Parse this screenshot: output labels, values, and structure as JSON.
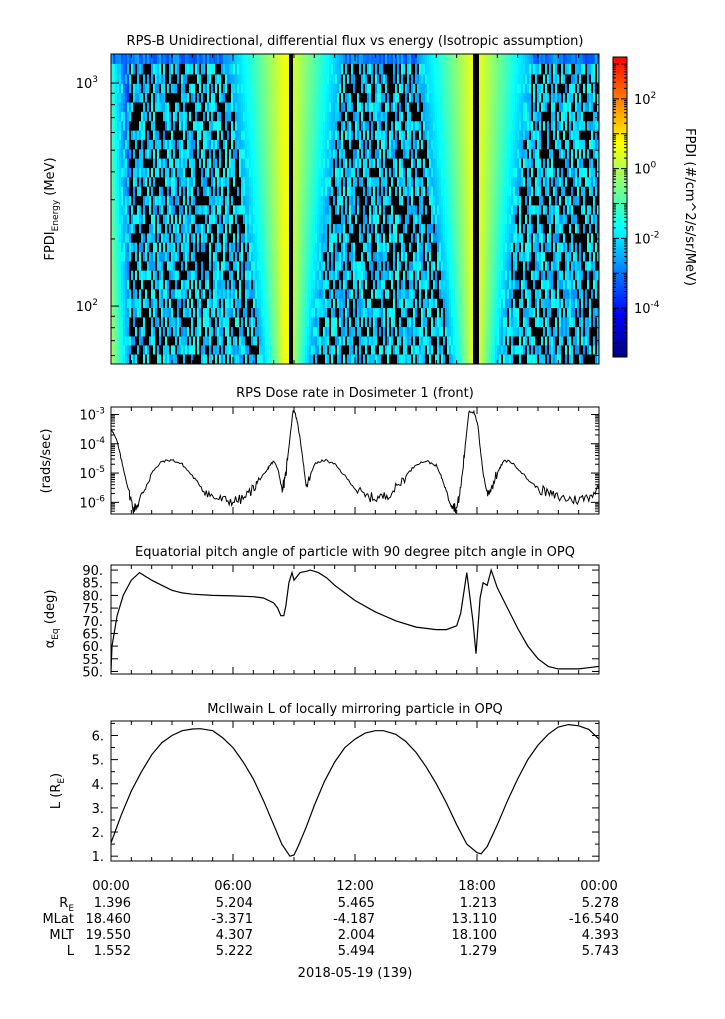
{
  "chart_data": [
    {
      "type": "heatmap",
      "title": "RPS-B  Unidirectional, differential flux vs energy (Isotropic assumption)",
      "ylabel": "FPDI",
      "ylabel_sub": "Energy",
      "ylabel_unit": " (MeV)",
      "yscale": "log",
      "ylim": [
        55,
        1350
      ],
      "yticks": [
        {
          "value": 100,
          "base": "10",
          "exp": "2"
        },
        {
          "value": 1000,
          "base": "10",
          "exp": "3"
        }
      ],
      "energy_channels_mev": [
        58,
        64,
        70,
        77,
        85,
        94,
        103,
        114,
        125,
        138,
        152,
        167,
        184,
        203,
        223,
        246,
        271,
        298,
        328,
        362,
        398,
        439,
        483,
        532,
        586,
        645,
        711,
        783,
        862,
        950,
        1046,
        1152,
        1300
      ],
      "xlim_hours": [
        0,
        24
      ],
      "bright_bands_hours": [
        8.6,
        17.9
      ],
      "data_gaps_hours": [
        8.85,
        17.95
      ],
      "colorbar": {
        "label": "FPDI (#/cm^2/s/sr/MeV)",
        "scale": "log",
        "ticks": [
          {
            "base": "10",
            "exp": "2",
            "value": 100
          },
          {
            "base": "10",
            "exp": "0",
            "value": 1
          },
          {
            "base": "10",
            "exp": "-2",
            "value": 0.01
          },
          {
            "base": "10",
            "exp": "-4",
            "value": 0.0001
          }
        ],
        "colors": [
          "#00007f",
          "#0000ff",
          "#007fff",
          "#00ffff",
          "#7fff7f",
          "#ffff00",
          "#ff7f00",
          "#ff0000"
        ]
      }
    },
    {
      "type": "line",
      "title": "RPS  Dose rate in Dosimeter 1 (front)",
      "ylabel": "(rads/sec)",
      "yscale": "log",
      "ylim": [
        4e-07,
        0.0018
      ],
      "yticks": [
        {
          "value": 1e-06,
          "base": "10",
          "exp": "-6"
        },
        {
          "value": 1e-05,
          "base": "10",
          "exp": "-5"
        },
        {
          "value": 0.0001,
          "base": "10",
          "exp": "-4"
        },
        {
          "value": 0.001,
          "base": "10",
          "exp": "-3"
        }
      ],
      "x_hours": [
        0,
        0.3,
        0.6,
        0.9,
        1.1,
        1.3,
        1.6,
        2.0,
        2.5,
        3.0,
        3.5,
        4.0,
        4.5,
        5.0,
        5.5,
        6.0,
        6.5,
        7.0,
        7.3,
        7.6,
        7.8,
        8.0,
        8.2,
        8.4,
        8.55,
        8.7,
        8.95,
        9.05,
        9.2,
        9.4,
        9.6,
        9.8,
        10.0,
        10.5,
        11.0,
        11.5,
        12.0,
        12.5,
        13.0,
        13.5,
        14.0,
        14.5,
        15.0,
        15.5,
        16.0,
        16.3,
        16.6,
        16.8,
        17.0,
        17.2,
        17.4,
        17.6,
        17.85,
        18.05,
        18.15,
        18.3,
        18.5,
        18.7,
        19.0,
        19.3,
        19.6,
        20.0,
        20.5,
        21.0,
        21.5,
        22.0,
        22.5,
        23.0,
        23.5,
        24.0
      ],
      "y": [
        0.00035,
        0.00012,
        1.5e-05,
        2e-06,
        6e-07,
        8e-07,
        2.5e-06,
        1e-05,
        2.5e-05,
        2.8e-05,
        2e-05,
        8e-06,
        3e-06,
        1.5e-06,
        1.2e-06,
        1.1e-06,
        1.3e-06,
        3e-06,
        6e-06,
        1e-05,
        1.8e-05,
        2.5e-05,
        1.5e-05,
        3e-06,
        5e-06,
        4e-05,
        0.0013,
        0.0012,
        0.0004,
        5e-05,
        3e-06,
        8e-06,
        2e-05,
        2.8e-05,
        2e-05,
        8e-06,
        3e-06,
        1.6e-06,
        1.4e-06,
        1.6e-06,
        3e-06,
        8e-06,
        2e-05,
        2.6e-05,
        1.8e-05,
        6e-06,
        1.5e-06,
        8e-07,
        6e-07,
        3e-06,
        6e-05,
        0.0013,
        0.0012,
        0.0004,
        8e-05,
        1e-05,
        2e-06,
        3e-06,
        1e-05,
        2.5e-05,
        2.6e-05,
        1.5e-05,
        6e-06,
        3e-06,
        2e-06,
        1.5e-06,
        1.3e-06,
        1.2e-06,
        1.6e-06,
        3e-06
      ]
    },
    {
      "type": "line",
      "title": "Equatorial pitch angle of particle with 90 degree pitch angle in OPQ",
      "ylabel": "α",
      "ylabel_sub": "Eq",
      "ylabel_unit": " (deg)",
      "ylim": [
        49,
        92
      ],
      "yticks": [
        50,
        55,
        60,
        65,
        70,
        75,
        80,
        85,
        90
      ],
      "ytick_labels": [
        "50.",
        "55.",
        "60.",
        "65.",
        "70.",
        "75.",
        "80.",
        "85.",
        "90."
      ],
      "x_hours": [
        0,
        0.05,
        0.3,
        0.6,
        1.0,
        1.4,
        1.6,
        2.0,
        2.5,
        3.0,
        3.5,
        4.0,
        5.0,
        6.0,
        7.0,
        7.5,
        8.0,
        8.2,
        8.35,
        8.5,
        8.6,
        8.75,
        8.9,
        9.0,
        9.3,
        9.6,
        9.8,
        10.2,
        10.6,
        11.0,
        11.5,
        12.0,
        13.0,
        14.0,
        15.0,
        16.0,
        16.5,
        17.0,
        17.2,
        17.5,
        17.8,
        17.95,
        18.15,
        18.3,
        18.5,
        18.7,
        19.0,
        19.5,
        20.0,
        20.5,
        21.0,
        21.5,
        22.0,
        22.5,
        23.0,
        23.5,
        24.0
      ],
      "y": [
        50,
        60,
        72,
        80,
        86,
        89,
        88,
        86,
        84,
        82,
        81,
        80.5,
        80,
        79.8,
        79.5,
        79,
        77,
        75,
        72,
        72,
        76,
        85,
        89,
        86,
        89,
        89.5,
        90,
        89,
        87,
        84,
        81,
        78,
        73.5,
        70,
        67.5,
        66.5,
        66.5,
        68,
        73,
        89,
        70,
        57,
        79,
        85,
        84,
        90,
        83,
        75,
        67,
        60,
        55,
        52,
        51,
        51,
        51,
        51.5,
        52
      ]
    },
    {
      "type": "line",
      "title": "McIlwain L of locally mirroring particle in OPQ",
      "ylabel": "L (R",
      "ylabel_sub": "E",
      "ylabel_unit": ")",
      "ylim": [
        0.8,
        6.6
      ],
      "yticks": [
        1,
        2,
        3,
        4,
        5,
        6
      ],
      "ytick_labels": [
        "1.",
        "2.",
        "3.",
        "4.",
        "5.",
        "6."
      ],
      "x_hours": [
        0,
        0.5,
        1.0,
        1.5,
        2.0,
        2.5,
        3.0,
        3.5,
        4.0,
        4.4,
        5.0,
        5.5,
        6.0,
        6.5,
        7.0,
        7.5,
        8.0,
        8.4,
        8.8,
        9.0,
        9.2,
        9.6,
        10.0,
        10.5,
        11.0,
        11.5,
        12.0,
        12.5,
        13.0,
        13.4,
        14.0,
        14.5,
        15.0,
        15.5,
        16.0,
        16.5,
        17.0,
        17.5,
        18.0,
        18.2,
        18.5,
        19.0,
        19.5,
        20.0,
        20.5,
        21.0,
        21.5,
        22.0,
        22.5,
        23.0,
        23.5,
        24.0
      ],
      "y": [
        1.55,
        2.7,
        3.7,
        4.5,
        5.2,
        5.7,
        6.0,
        6.2,
        6.27,
        6.28,
        6.2,
        5.9,
        5.5,
        4.9,
        4.2,
        3.3,
        2.3,
        1.5,
        1.0,
        1.05,
        1.4,
        2.2,
        3.1,
        4.1,
        4.9,
        5.5,
        5.85,
        6.1,
        6.2,
        6.2,
        6.05,
        5.75,
        5.3,
        4.7,
        4.0,
        3.2,
        2.3,
        1.5,
        1.15,
        1.1,
        1.4,
        2.3,
        3.3,
        4.2,
        5.0,
        5.6,
        6.05,
        6.35,
        6.45,
        6.4,
        6.25,
        5.85
      ]
    }
  ],
  "time_axis": {
    "ticks": [
      "00:00",
      "06:00",
      "12:00",
      "18:00",
      "00:00"
    ],
    "ephemeris": [
      {
        "label": "R",
        "label_sub": "E",
        "values": [
          "1.396",
          "5.204",
          "5.465",
          "1.213",
          "5.278"
        ]
      },
      {
        "label": "MLat",
        "label_sub": "",
        "values": [
          "18.460",
          "-3.371",
          "-4.187",
          "13.110",
          "-16.540"
        ]
      },
      {
        "label": "MLT",
        "label_sub": "",
        "values": [
          "19.550",
          "4.307",
          "2.004",
          "18.100",
          "4.393"
        ]
      },
      {
        "label": "L",
        "label_sub": "",
        "values": [
          "1.552",
          "5.222",
          "5.494",
          "1.279",
          "5.743"
        ]
      }
    ],
    "date": "2018-05-19 (139)"
  }
}
